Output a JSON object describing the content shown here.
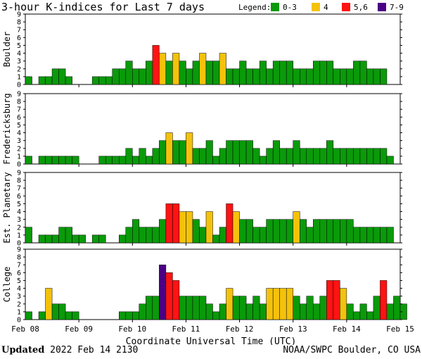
{
  "title": "3-hour K-indices for Last 7 days",
  "legend": {
    "label": "Legend:",
    "items": [
      {
        "label": "0-3",
        "color": "#0a9a0a"
      },
      {
        "label": "4",
        "color": "#f4c20b"
      },
      {
        "label": "5,6",
        "color": "#ff1313"
      },
      {
        "label": "7-9",
        "color": "#4b0084"
      }
    ]
  },
  "footer": {
    "updated_label": "Updated",
    "updated_value": "2022 Feb 14 2130",
    "source": "NOAA/SWPC Boulder, CO USA"
  },
  "chart_data": {
    "type": "bar",
    "title": "3-hour K-indices for Last 7 days",
    "xlabel": "Coordinate Universal Time (UTC)",
    "x_tick_labels": [
      "Feb 08",
      "Feb 09",
      "Feb 10",
      "Feb 11",
      "Feb 12",
      "Feb 13",
      "Feb 14",
      "Feb 15"
    ],
    "y_ticks": [
      0,
      1,
      2,
      3,
      4,
      5,
      6,
      7,
      8,
      9
    ],
    "ylim": [
      0,
      9
    ],
    "bin": "3-hour",
    "color_scale": [
      {
        "range": "0-3",
        "color": "#0a9a0a"
      },
      {
        "range": "4",
        "color": "#f4c20b"
      },
      {
        "range": "5,6",
        "color": "#ff1313"
      },
      {
        "range": "7-9",
        "color": "#4b0084"
      }
    ],
    "series": [
      {
        "name": "Boulder",
        "values": [
          1,
          0,
          1,
          1,
          2,
          2,
          1,
          0,
          0,
          0,
          1,
          1,
          1,
          2,
          2,
          3,
          2,
          2,
          3,
          5,
          4,
          3,
          4,
          3,
          2,
          3,
          4,
          3,
          3,
          4,
          2,
          2,
          3,
          2,
          2,
          3,
          2,
          3,
          3,
          3,
          2,
          2,
          2,
          3,
          3,
          3,
          2,
          2,
          2,
          3,
          3,
          2,
          2,
          2,
          0
        ]
      },
      {
        "name": "Fredericksburg",
        "values": [
          1,
          0,
          1,
          1,
          1,
          1,
          1,
          1,
          0,
          0,
          0,
          1,
          1,
          1,
          1,
          2,
          1,
          2,
          1,
          2,
          3,
          4,
          3,
          3,
          4,
          2,
          2,
          3,
          1,
          2,
          3,
          3,
          3,
          3,
          2,
          1,
          2,
          3,
          2,
          2,
          3,
          2,
          2,
          2,
          2,
          3,
          2,
          2,
          2,
          2,
          2,
          2,
          2,
          2,
          1,
          0
        ]
      },
      {
        "name": "Est. Planetary",
        "values": [
          2,
          0,
          1,
          1,
          1,
          2,
          2,
          1,
          1,
          0,
          1,
          1,
          0,
          0,
          1,
          2,
          3,
          2,
          2,
          2,
          3,
          5,
          5,
          4,
          4,
          3,
          2,
          4,
          1,
          2,
          5,
          4,
          3,
          3,
          2,
          2,
          3,
          3,
          3,
          3,
          4,
          3,
          2,
          3,
          3,
          3,
          3,
          3,
          3,
          2,
          2,
          2,
          2,
          2,
          2
        ]
      },
      {
        "name": "College",
        "values": [
          1,
          0,
          1,
          4,
          2,
          2,
          1,
          1,
          0,
          0,
          0,
          0,
          0,
          0,
          1,
          1,
          1,
          2,
          3,
          3,
          7,
          6,
          5,
          3,
          3,
          3,
          3,
          2,
          1,
          2,
          4,
          3,
          3,
          2,
          3,
          2,
          4,
          4,
          4,
          4,
          3,
          2,
          3,
          2,
          3,
          5,
          5,
          4,
          2,
          1,
          2,
          1,
          3,
          5,
          2,
          3,
          2,
          0
        ]
      }
    ]
  }
}
